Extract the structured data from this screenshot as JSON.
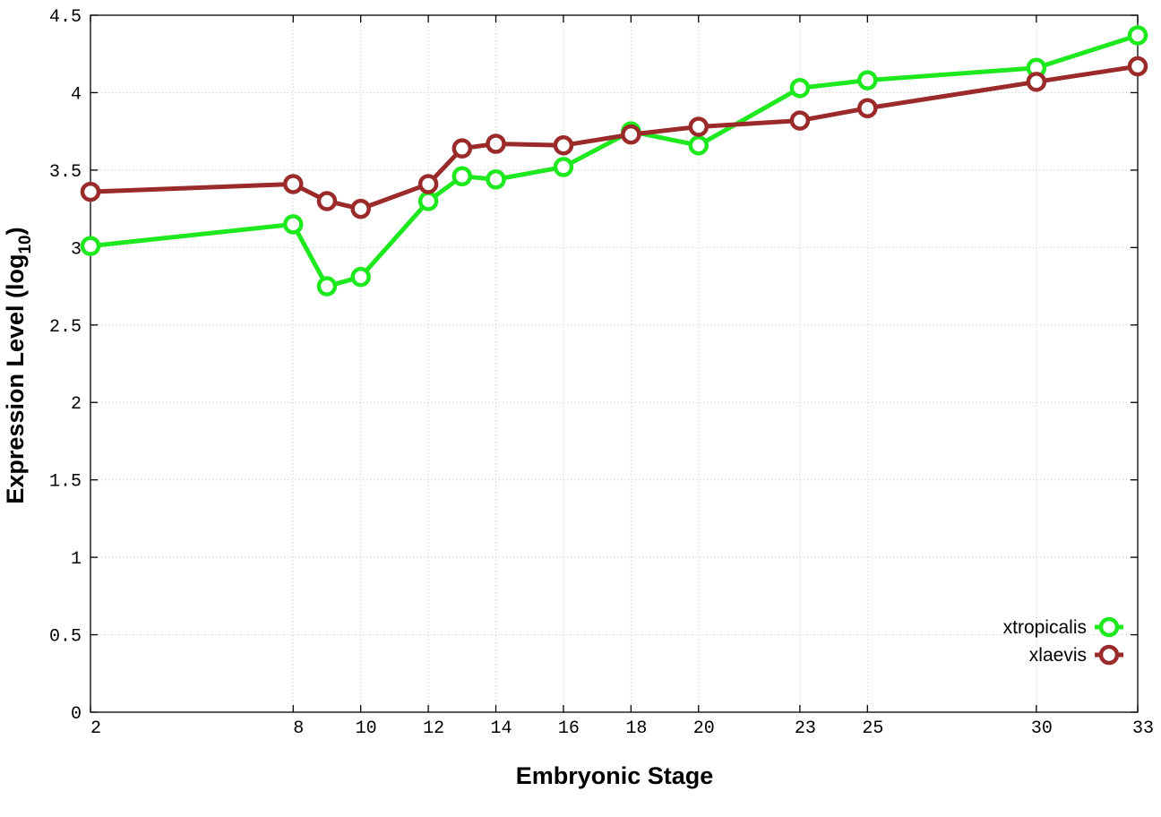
{
  "chart_data": {
    "type": "line",
    "title": "",
    "xlabel": "Embryonic Stage",
    "ylabel": "Expression Level (log",
    "ylabel_subscript": "10",
    "ylabel_close": ")",
    "xlim": [
      2,
      33
    ],
    "ylim": [
      0,
      4.5
    ],
    "x_ticks": [
      2,
      8,
      10,
      12,
      14,
      16,
      18,
      20,
      23,
      25,
      30,
      33
    ],
    "x_tick_labels": [
      "2",
      "8",
      "10",
      "12",
      "14",
      "16",
      "18",
      "20",
      "23",
      "25",
      "30",
      "33"
    ],
    "y_ticks": [
      0,
      0.5,
      1,
      1.5,
      2,
      2.5,
      3,
      3.5,
      4,
      4.5
    ],
    "y_tick_labels": [
      "0",
      "0.5",
      "1",
      "1.5",
      "2",
      "2.5",
      "3",
      "3.5",
      "4",
      "4.5"
    ],
    "grid": true,
    "legend_position": "bottom-right",
    "series": [
      {
        "name": "xtropicalis",
        "color": "#1ee81e",
        "x": [
          2,
          8,
          9,
          10,
          12,
          13,
          14,
          16,
          18,
          20,
          23,
          25,
          30,
          33
        ],
        "y": [
          3.01,
          3.15,
          2.75,
          2.81,
          3.3,
          3.46,
          3.44,
          3.52,
          3.75,
          3.66,
          4.03,
          4.08,
          4.16,
          4.37
        ]
      },
      {
        "name": "xlaevis",
        "color": "#9b2a2a",
        "x": [
          2,
          8,
          9,
          10,
          12,
          13,
          14,
          16,
          18,
          20,
          23,
          25,
          30,
          33
        ],
        "y": [
          3.36,
          3.41,
          3.3,
          3.25,
          3.41,
          3.64,
          3.67,
          3.66,
          3.73,
          3.78,
          3.82,
          3.9,
          4.07,
          4.17
        ]
      }
    ]
  }
}
